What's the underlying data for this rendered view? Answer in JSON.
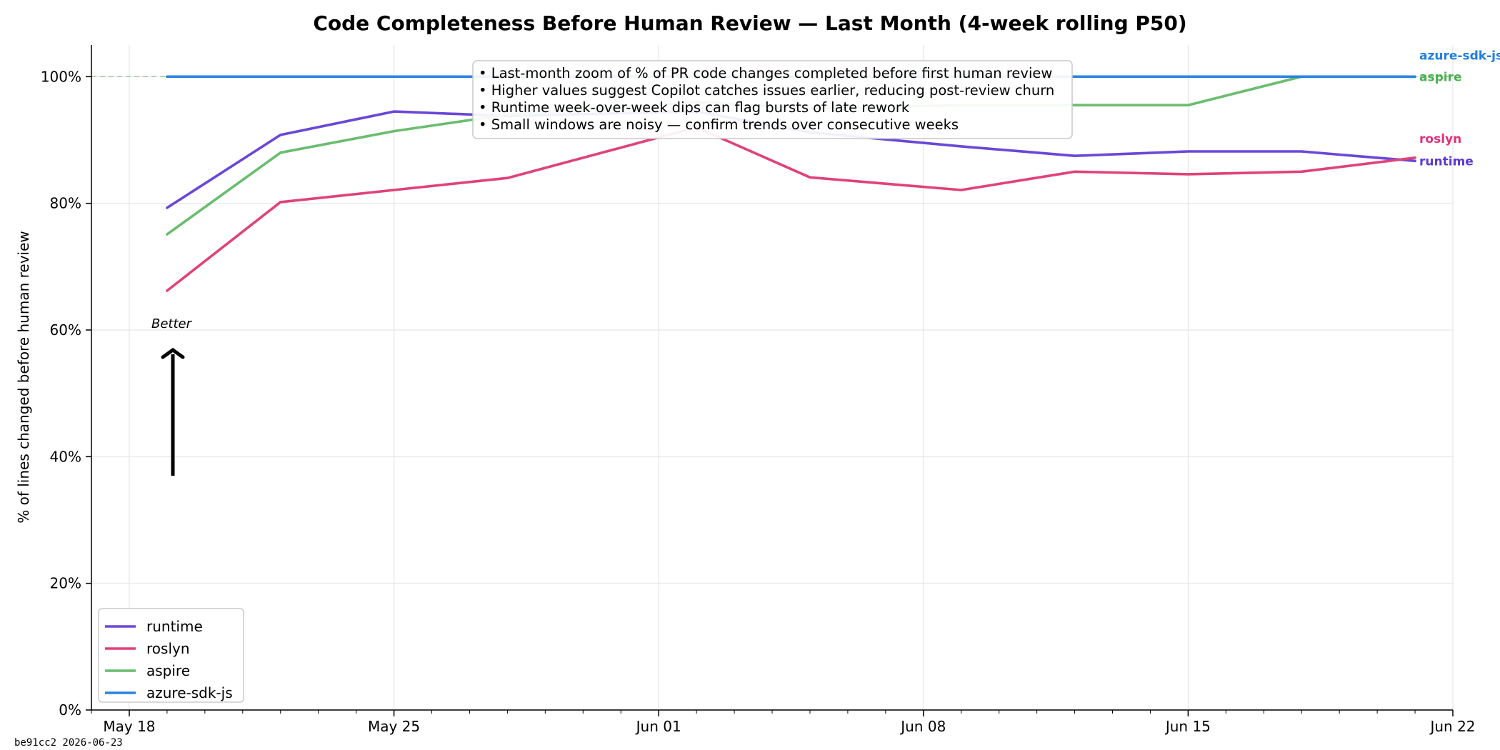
{
  "chart_data": {
    "type": "line",
    "title": "Code Completeness Before Human Review — Last Month (4-week rolling P50)",
    "ylabel": "% of lines changed before human review",
    "xlabel": "",
    "x_type": "date",
    "xlim": [
      "2026-05-17",
      "2026-06-22"
    ],
    "ylim": [
      0,
      105
    ],
    "y_ticks": [
      0,
      20,
      40,
      60,
      80,
      100
    ],
    "y_tick_labels": [
      "0%",
      "20%",
      "40%",
      "60%",
      "80%",
      "100%"
    ],
    "x_ticks": [
      "2026-05-18",
      "2026-05-25",
      "2026-06-01",
      "2026-06-08",
      "2026-06-15",
      "2026-06-22"
    ],
    "x_tick_labels": [
      "May 18",
      "May 25",
      "Jun 01",
      "Jun 08",
      "Jun 15",
      "Jun 22"
    ],
    "reference_line": 100,
    "grid": true,
    "legend": {
      "placement": "lower-left"
    },
    "x": [
      "2026-05-19",
      "2026-05-22",
      "2026-05-25",
      "2026-05-28",
      "2026-06-02",
      "2026-06-05",
      "2026-06-09",
      "2026-06-12",
      "2026-06-15",
      "2026-06-18",
      "2026-06-21"
    ],
    "series": [
      {
        "name": "runtime",
        "color": "#6a48d7",
        "values": [
          79.3,
          90.8,
          94.5,
          93.8,
          94.5,
          91.2,
          89.0,
          87.5,
          88.2,
          88.2,
          86.7
        ]
      },
      {
        "name": "roslyn",
        "color": "#e0427a",
        "values": [
          66.2,
          80.2,
          82.1,
          84.0,
          92.0,
          84.1,
          82.1,
          85.0,
          84.6,
          85.0,
          87.2
        ]
      },
      {
        "name": "aspire",
        "color": "#69bd6f",
        "values": [
          75.1,
          88.0,
          91.4,
          94.0,
          96.0,
          95.0,
          95.5,
          95.5,
          95.5,
          100.0,
          100.0
        ]
      },
      {
        "name": "azure-sdk-js",
        "color": "#2a83e0",
        "values": [
          100,
          100,
          100,
          100,
          100,
          100,
          100,
          100,
          100,
          100,
          100
        ]
      }
    ],
    "annotations": [
      "• Last-month zoom of % of PR code changes completed before first human review",
      "• Higher values suggest Copilot catches issues earlier, reducing post-review churn",
      "• Runtime week-over-week dips can flag bursts of late rework",
      "• Small windows are noisy — confirm trends over consecutive weeks"
    ],
    "arrow_label": "Better"
  },
  "end_labels": [
    {
      "series": "azure-sdk-js",
      "text": "azure-sdk-js",
      "color": "#1f7fe0"
    },
    {
      "series": "aspire",
      "text": "aspire",
      "color": "#4caf50"
    },
    {
      "series": "roslyn",
      "text": "roslyn",
      "color": "#e0307a"
    },
    {
      "series": "runtime",
      "text": "runtime",
      "color": "#5a3ad0"
    }
  ],
  "footer": "be91cc2  2026-06-23"
}
